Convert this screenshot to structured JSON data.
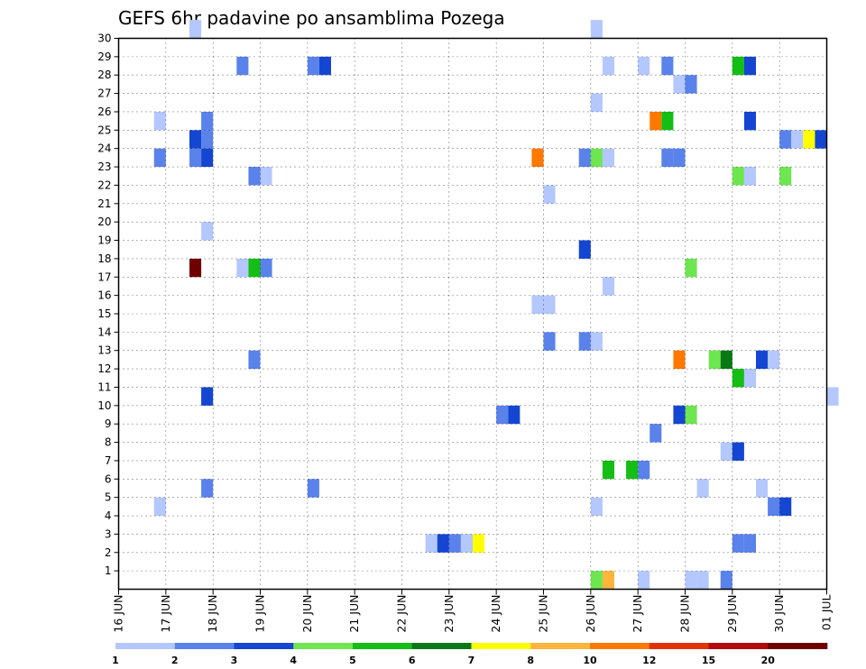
{
  "chart_data": {
    "type": "heatmap",
    "title": "GEFS 6hr padavine po ansamblima Pozega",
    "xlabel": "",
    "ylabel": "",
    "y_ticks": [
      "1",
      "2",
      "3",
      "4",
      "5",
      "6",
      "7",
      "8",
      "9",
      "10",
      "11",
      "12",
      "13",
      "14",
      "15",
      "16",
      "17",
      "18",
      "19",
      "20",
      "21",
      "22",
      "23",
      "24",
      "25",
      "26",
      "27",
      "28",
      "29",
      "30"
    ],
    "x_ticks": [
      "16 JUN",
      "17 JUN",
      "18 JUN",
      "19 JUN",
      "20 JUN",
      "21 JUN",
      "22 JUN",
      "23 JUN",
      "24 JUN",
      "25 JUN",
      "26 JUN",
      "27 JUN",
      "28 JUN",
      "29 JUN",
      "30 JUN",
      "01 JUL"
    ],
    "x_range_days": [
      0,
      15
    ],
    "y_range_members": [
      0,
      30
    ],
    "grid": true,
    "colorbar": {
      "labels": [
        "1",
        "2",
        "3",
        "4",
        "5",
        "6",
        "7",
        "8",
        "10",
        "12",
        "15",
        "20"
      ],
      "colors": [
        "#b4c8ff",
        "#5a82eb",
        "#1446d2",
        "#6ee650",
        "#14be14",
        "#0a7814",
        "#ffff00",
        "#ffb43c",
        "#ff7800",
        "#e13200",
        "#b40a0a",
        "#6e0000"
      ]
    },
    "cells": [
      {
        "day": 1.5,
        "member": 30,
        "level": 1
      },
      {
        "day": 10.0,
        "member": 30,
        "level": 1
      },
      {
        "day": 2.5,
        "member": 28,
        "level": 2
      },
      {
        "day": 4.0,
        "member": 28,
        "level": 2
      },
      {
        "day": 4.25,
        "member": 28,
        "level": 3
      },
      {
        "day": 10.25,
        "member": 28,
        "level": 1
      },
      {
        "day": 11.0,
        "member": 28,
        "level": 1
      },
      {
        "day": 11.5,
        "member": 28,
        "level": 2
      },
      {
        "day": 13.0,
        "member": 28,
        "level": 5
      },
      {
        "day": 13.25,
        "member": 28,
        "level": 3
      },
      {
        "day": 11.75,
        "member": 27,
        "level": 1
      },
      {
        "day": 12.0,
        "member": 27,
        "level": 2
      },
      {
        "day": 10.0,
        "member": 26,
        "level": 1
      },
      {
        "day": 0.75,
        "member": 25,
        "level": 1
      },
      {
        "day": 1.75,
        "member": 25,
        "level": 2
      },
      {
        "day": 11.25,
        "member": 25,
        "level": 9
      },
      {
        "day": 11.5,
        "member": 25,
        "level": 5
      },
      {
        "day": 13.25,
        "member": 25,
        "level": 3
      },
      {
        "day": 1.5,
        "member": 24,
        "level": 3
      },
      {
        "day": 1.75,
        "member": 24,
        "level": 2
      },
      {
        "day": 14.0,
        "member": 24,
        "level": 2
      },
      {
        "day": 14.25,
        "member": 24,
        "level": 1
      },
      {
        "day": 14.5,
        "member": 24,
        "level": 7
      },
      {
        "day": 14.75,
        "member": 24,
        "level": 3
      },
      {
        "day": 0.75,
        "member": 23,
        "level": 2
      },
      {
        "day": 1.5,
        "member": 23,
        "level": 2
      },
      {
        "day": 1.75,
        "member": 23,
        "level": 3
      },
      {
        "day": 8.75,
        "member": 23,
        "level": 9
      },
      {
        "day": 9.75,
        "member": 23,
        "level": 2
      },
      {
        "day": 10.0,
        "member": 23,
        "level": 4
      },
      {
        "day": 10.25,
        "member": 23,
        "level": 1
      },
      {
        "day": 11.5,
        "member": 23,
        "level": 2
      },
      {
        "day": 11.75,
        "member": 23,
        "level": 2
      },
      {
        "day": 2.75,
        "member": 22,
        "level": 2
      },
      {
        "day": 3.0,
        "member": 22,
        "level": 1
      },
      {
        "day": 13.0,
        "member": 22,
        "level": 4
      },
      {
        "day": 13.25,
        "member": 22,
        "level": 1
      },
      {
        "day": 14.0,
        "member": 22,
        "level": 4
      },
      {
        "day": 9.0,
        "member": 21,
        "level": 1
      },
      {
        "day": 1.75,
        "member": 19,
        "level": 1
      },
      {
        "day": 9.75,
        "member": 18,
        "level": 3
      },
      {
        "day": 1.5,
        "member": 17,
        "level": 12
      },
      {
        "day": 2.5,
        "member": 17,
        "level": 1
      },
      {
        "day": 2.75,
        "member": 17,
        "level": 5
      },
      {
        "day": 3.0,
        "member": 17,
        "level": 2
      },
      {
        "day": 12.0,
        "member": 17,
        "level": 4
      },
      {
        "day": 10.25,
        "member": 16,
        "level": 1
      },
      {
        "day": 8.75,
        "member": 15,
        "level": 1
      },
      {
        "day": 9.0,
        "member": 15,
        "level": 1
      },
      {
        "day": 9.0,
        "member": 13,
        "level": 2
      },
      {
        "day": 9.75,
        "member": 13,
        "level": 2
      },
      {
        "day": 10.0,
        "member": 13,
        "level": 1
      },
      {
        "day": 2.75,
        "member": 12,
        "level": 2
      },
      {
        "day": 11.75,
        "member": 12,
        "level": 9
      },
      {
        "day": 12.5,
        "member": 12,
        "level": 4
      },
      {
        "day": 12.75,
        "member": 12,
        "level": 6
      },
      {
        "day": 13.5,
        "member": 12,
        "level": 3
      },
      {
        "day": 13.75,
        "member": 12,
        "level": 1
      },
      {
        "day": 13.0,
        "member": 11,
        "level": 5
      },
      {
        "day": 13.25,
        "member": 11,
        "level": 1
      },
      {
        "day": 1.75,
        "member": 10,
        "level": 3
      },
      {
        "day": 15.0,
        "member": 10,
        "level": 1
      },
      {
        "day": 8.0,
        "member": 9,
        "level": 2
      },
      {
        "day": 8.25,
        "member": 9,
        "level": 3
      },
      {
        "day": 11.75,
        "member": 9,
        "level": 3
      },
      {
        "day": 12.0,
        "member": 9,
        "level": 4
      },
      {
        "day": 11.25,
        "member": 8,
        "level": 2
      },
      {
        "day": 12.75,
        "member": 7,
        "level": 1
      },
      {
        "day": 13.0,
        "member": 7,
        "level": 3
      },
      {
        "day": 10.25,
        "member": 6,
        "level": 5
      },
      {
        "day": 10.75,
        "member": 6,
        "level": 5
      },
      {
        "day": 11.0,
        "member": 6,
        "level": 2
      },
      {
        "day": 1.75,
        "member": 5,
        "level": 2
      },
      {
        "day": 4.0,
        "member": 5,
        "level": 2
      },
      {
        "day": 12.25,
        "member": 5,
        "level": 1
      },
      {
        "day": 13.5,
        "member": 5,
        "level": 1
      },
      {
        "day": 0.75,
        "member": 4,
        "level": 1
      },
      {
        "day": 10.0,
        "member": 4,
        "level": 1
      },
      {
        "day": 13.75,
        "member": 4,
        "level": 2
      },
      {
        "day": 14.0,
        "member": 4,
        "level": 3
      },
      {
        "day": 6.5,
        "member": 2,
        "level": 1
      },
      {
        "day": 6.75,
        "member": 2,
        "level": 3
      },
      {
        "day": 7.0,
        "member": 2,
        "level": 2
      },
      {
        "day": 7.25,
        "member": 2,
        "level": 1
      },
      {
        "day": 7.5,
        "member": 2,
        "level": 7
      },
      {
        "day": 13.0,
        "member": 2,
        "level": 2
      },
      {
        "day": 13.25,
        "member": 2,
        "level": 2
      },
      {
        "day": 10.0,
        "member": 0,
        "level": 4
      },
      {
        "day": 10.25,
        "member": 0,
        "level": 8
      },
      {
        "day": 11.0,
        "member": 0,
        "level": 1
      },
      {
        "day": 12.0,
        "member": 0,
        "level": 1
      },
      {
        "day": 12.25,
        "member": 0,
        "level": 1
      },
      {
        "day": 12.75,
        "member": 0,
        "level": 2
      }
    ]
  }
}
